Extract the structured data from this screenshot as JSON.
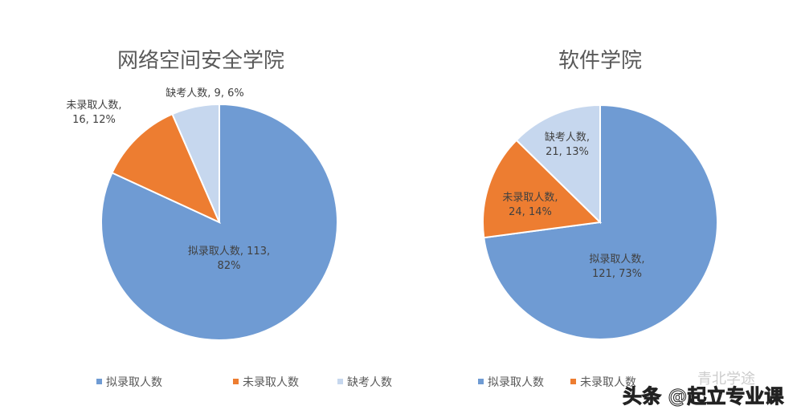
{
  "chart_data": [
    {
      "type": "pie",
      "title": "网络空间安全学院",
      "categories": [
        "拟录取人数",
        "未录取人数",
        "缺考人数"
      ],
      "values": [
        113,
        16,
        9
      ],
      "percents": [
        82,
        12,
        6
      ],
      "data_labels": [
        [
          "拟录取人数, 113,",
          "82%"
        ],
        [
          "未录取人数,",
          "16, 12%"
        ],
        [
          "缺考人数, 9, 6%"
        ]
      ],
      "legend_position": "bottom"
    },
    {
      "type": "pie",
      "title": "软件学院",
      "categories": [
        "拟录取人数",
        "未录取人数",
        "缺考人数"
      ],
      "values": [
        121,
        24,
        21
      ],
      "percents": [
        73,
        14,
        13
      ],
      "data_labels": [
        [
          "拟录取人数,",
          "121, 73%"
        ],
        [
          "未录取人数,",
          "24, 14%"
        ],
        [
          "缺考人数,",
          "21, 13%"
        ]
      ],
      "legend_position": "bottom"
    }
  ],
  "colors": [
    "#6f9bd3",
    "#ed7d31",
    "#c6d7ee"
  ],
  "watermark": {
    "wechat": "青北学途",
    "toutiao": "头条 @起立专业课"
  }
}
